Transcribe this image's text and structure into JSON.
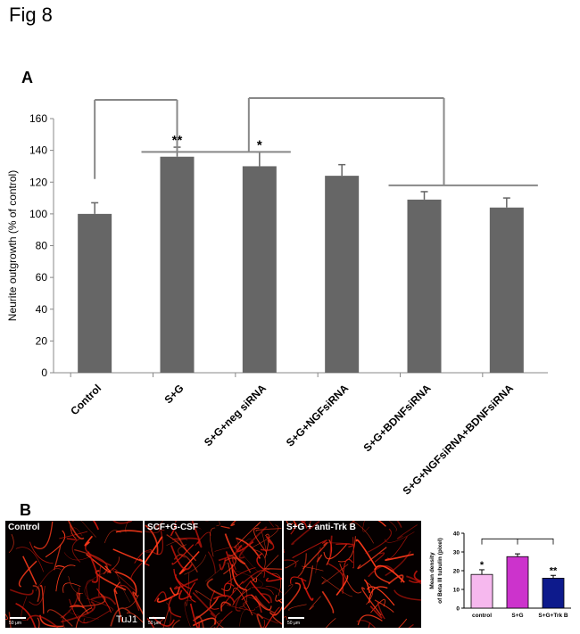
{
  "figure_label": "Fig 8",
  "panel_a_label": "A",
  "panel_b_label": "B",
  "chart_data": [
    {
      "type": "bar",
      "ylabel": "Neurite outgrowth (% of control)",
      "categories": [
        "Control",
        "S+G",
        "S+G+neg siRNA",
        "S+G+NGFsiRNA",
        "S+G+BDNFsiRNA",
        "S+G+NGFsiRNA+BDNFsiRNA"
      ],
      "values": [
        100,
        136,
        130,
        124,
        109,
        104
      ],
      "errors": [
        7,
        6,
        9,
        7,
        5,
        6
      ],
      "significance": [
        "",
        "**",
        "*",
        "",
        "",
        ""
      ],
      "yticks": [
        0,
        20,
        40,
        60,
        80,
        100,
        120,
        140,
        160
      ],
      "ylim": [
        0,
        160
      ],
      "bar_color": "#666666",
      "grid": false
    },
    {
      "type": "bar",
      "ylabel": "Mean density of Beta III tubulin (pixel)",
      "categories": [
        "control",
        "S+G",
        "S+G+Trk B"
      ],
      "values": [
        18,
        27.5,
        16
      ],
      "errors": [
        2.5,
        1.5,
        1.5
      ],
      "significance": [
        "*",
        "",
        "**"
      ],
      "bar_colors": [
        "#f6b8ee",
        "#cc33cc",
        "#0d1a8c"
      ],
      "yticks": [
        0,
        10,
        20,
        30,
        40
      ],
      "ylim": [
        0,
        40
      ],
      "grid": false
    }
  ],
  "micrographs": [
    {
      "label": "Control",
      "scale": "50 μm",
      "stain": "TuJ1"
    },
    {
      "label": "SCF+G-CSF",
      "scale": "50 μm",
      "stain": ""
    },
    {
      "label": "S+G + anti-Trk B",
      "scale": "50 μm",
      "stain": ""
    }
  ]
}
